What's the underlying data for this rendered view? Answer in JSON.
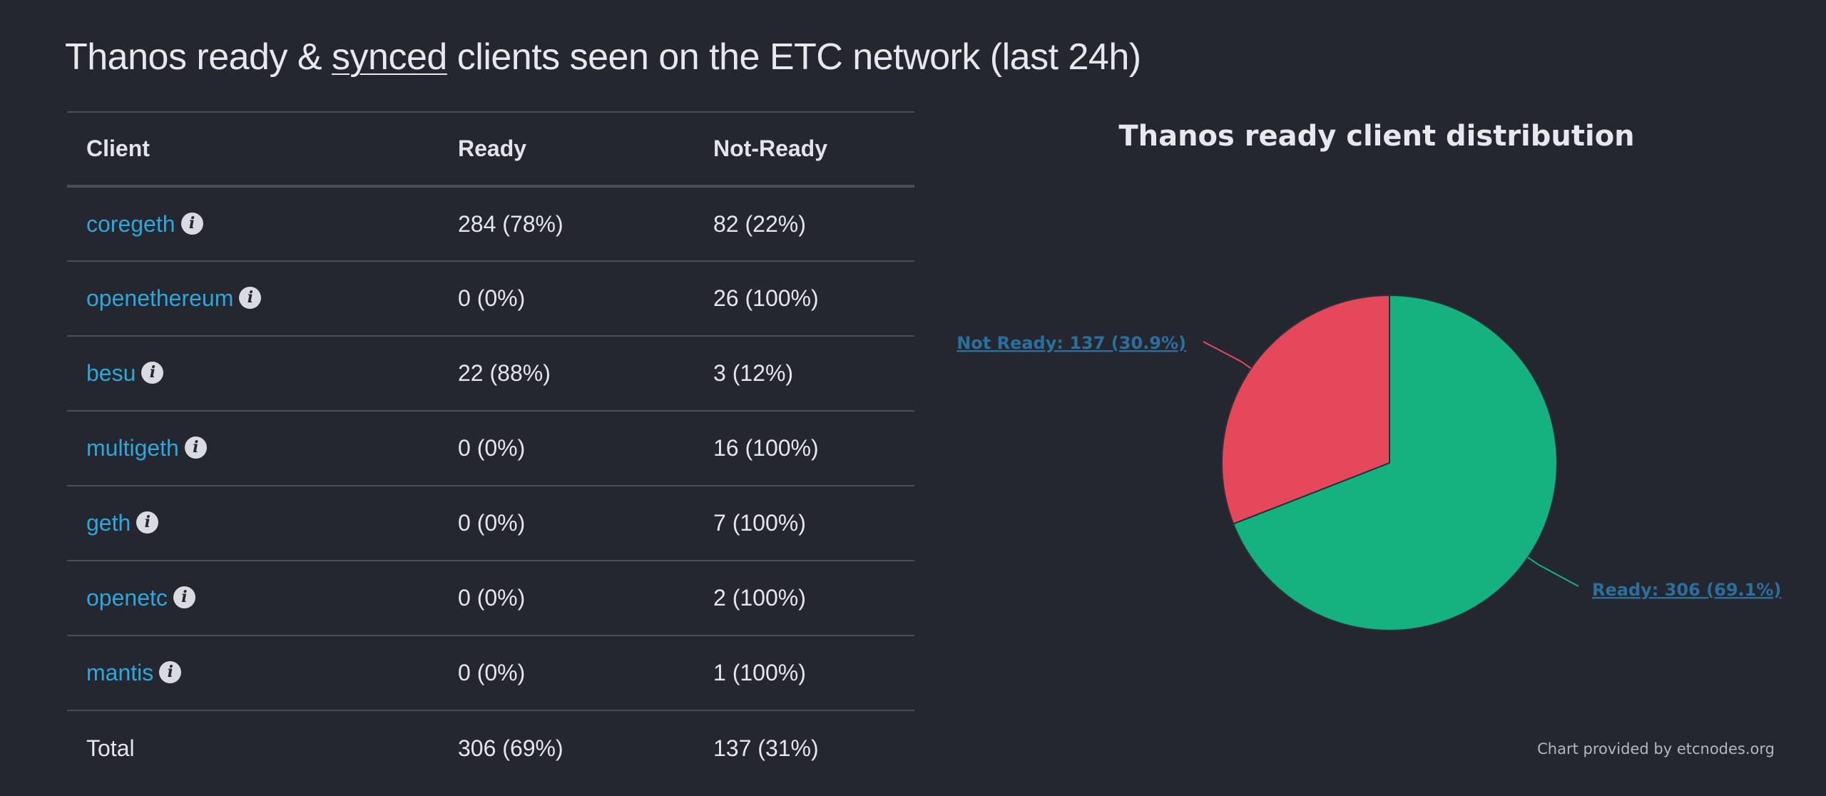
{
  "title": {
    "before": "Thanos ready & ",
    "synced": "synced",
    "after": " clients seen on the ETC network (last 24h)"
  },
  "table": {
    "headers": [
      "Client",
      "Ready",
      "Not-Ready"
    ],
    "rows": [
      {
        "client": "coregeth",
        "ready": "284 (78%)",
        "not_ready": "82 (22%)"
      },
      {
        "client": "openethereum",
        "ready": "0 (0%)",
        "not_ready": "26 (100%)"
      },
      {
        "client": "besu",
        "ready": "22 (88%)",
        "not_ready": "3 (12%)"
      },
      {
        "client": "multigeth",
        "ready": "0 (0%)",
        "not_ready": "16 (100%)"
      },
      {
        "client": "geth",
        "ready": "0 (0%)",
        "not_ready": "7 (100%)"
      },
      {
        "client": "openetc",
        "ready": "0 (0%)",
        "not_ready": "2 (100%)"
      },
      {
        "client": "mantis",
        "ready": "0 (0%)",
        "not_ready": "1 (100%)"
      }
    ],
    "total": {
      "label": "Total",
      "ready": "306 (69%)",
      "not_ready": "137 (31%)"
    },
    "info_icon_glyph": "i"
  },
  "chart_data": {
    "type": "pie",
    "title": "Thanos ready client distribution",
    "slices": [
      {
        "name": "Ready",
        "value": 306,
        "percent": 69.1,
        "color": "#15b27f",
        "label": "Ready: 306 (69.1%)"
      },
      {
        "name": "Not Ready",
        "value": 137,
        "percent": 30.9,
        "color": "#e5485b",
        "label": "Not Ready: 137 (30.9%)"
      }
    ],
    "label_color": "#2b6f9c",
    "credits": "Chart provided by etcnodes.org"
  },
  "icons": {
    "info": "info-icon"
  }
}
